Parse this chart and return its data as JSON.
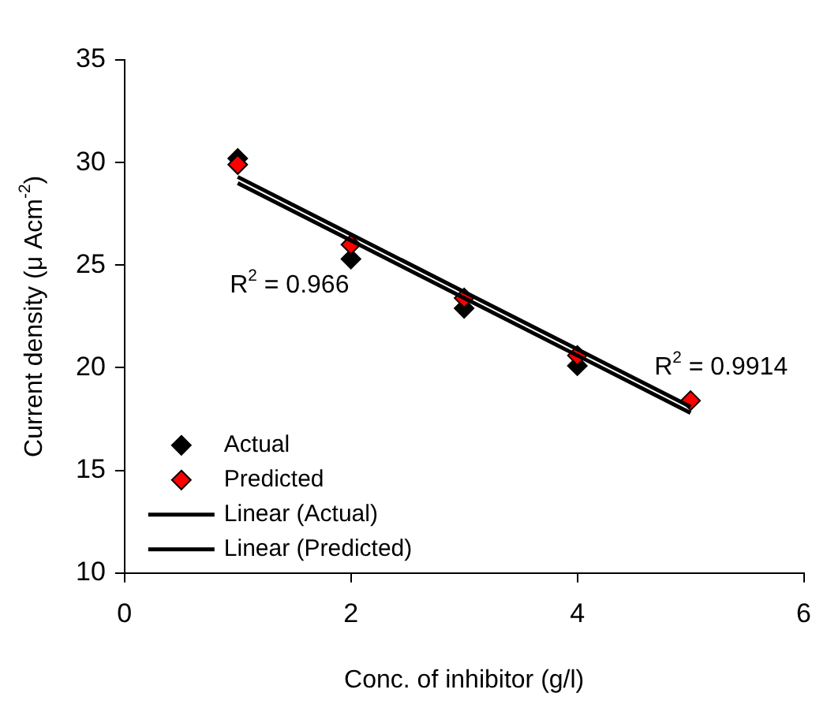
{
  "chart_data": {
    "type": "scatter",
    "xlabel": "Conc. of inhibitor (g/l)",
    "ylabel": "Current density (μ Acm$^{-2}$)",
    "x": [
      1,
      2,
      3,
      4,
      5
    ],
    "series": [
      {
        "name": "Actual",
        "type": "scatter",
        "color": "#000000",
        "marker": "diamond",
        "values": [
          30.2,
          25.3,
          22.9,
          20.1,
          null
        ]
      },
      {
        "name": "Predicted",
        "type": "scatter",
        "color": "#ff0000",
        "marker": "diamond",
        "values": [
          29.9,
          26.0,
          23.4,
          20.6,
          18.4
        ]
      },
      {
        "name": "Linear (Actual)",
        "type": "line",
        "color": "#000000",
        "marker": "none",
        "values": [
          29.0,
          26.2,
          23.4,
          20.6,
          17.8
        ]
      },
      {
        "name": "Linear (Predicted)",
        "type": "line",
        "color": "#000000",
        "marker": "none",
        "values": [
          29.3,
          26.5,
          23.7,
          20.9,
          18.1
        ]
      }
    ],
    "xlim": [
      0,
      6
    ],
    "xticks": [
      0,
      2,
      4,
      6
    ],
    "ylim": [
      10,
      35
    ],
    "yticks": [
      10,
      15,
      20,
      25,
      30,
      35
    ],
    "grid": false,
    "legend": "bottom left",
    "annotations": [
      "R$^{2}$ = 0.966",
      "R$^{2}$ = 0.9914"
    ]
  }
}
